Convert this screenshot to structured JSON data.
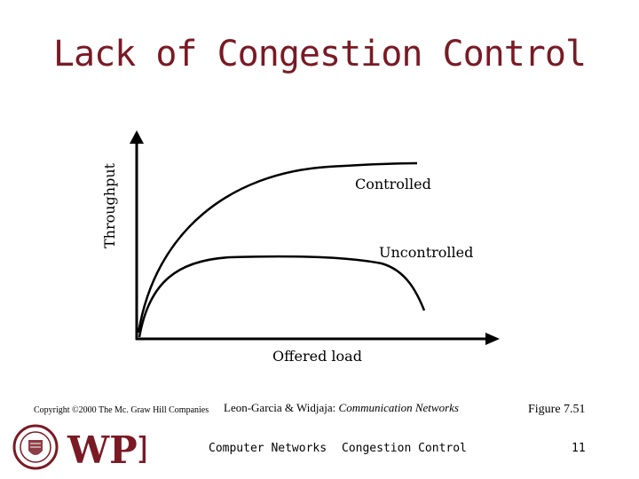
{
  "slide": {
    "title": "Lack of Congestion Control"
  },
  "diagram": {
    "y_axis_label": "Throughput",
    "x_axis_label": "Offered load",
    "curves": [
      {
        "label": "Controlled",
        "color": "#000000"
      },
      {
        "label": "Uncontrolled",
        "color": "#000000"
      }
    ]
  },
  "footer": {
    "copyright": "Copyright ©2000 The Mc. Graw Hill Companies",
    "citation_authors": "Leon-Garcia & Widjaja:",
    "citation_book": "Communication Networks",
    "figure_ref": "Figure 7.51",
    "course": "Computer Networks",
    "topic": "Congestion Control",
    "page_number": "11",
    "logo_text": "WPI",
    "logo_color": "#7a1a24"
  }
}
